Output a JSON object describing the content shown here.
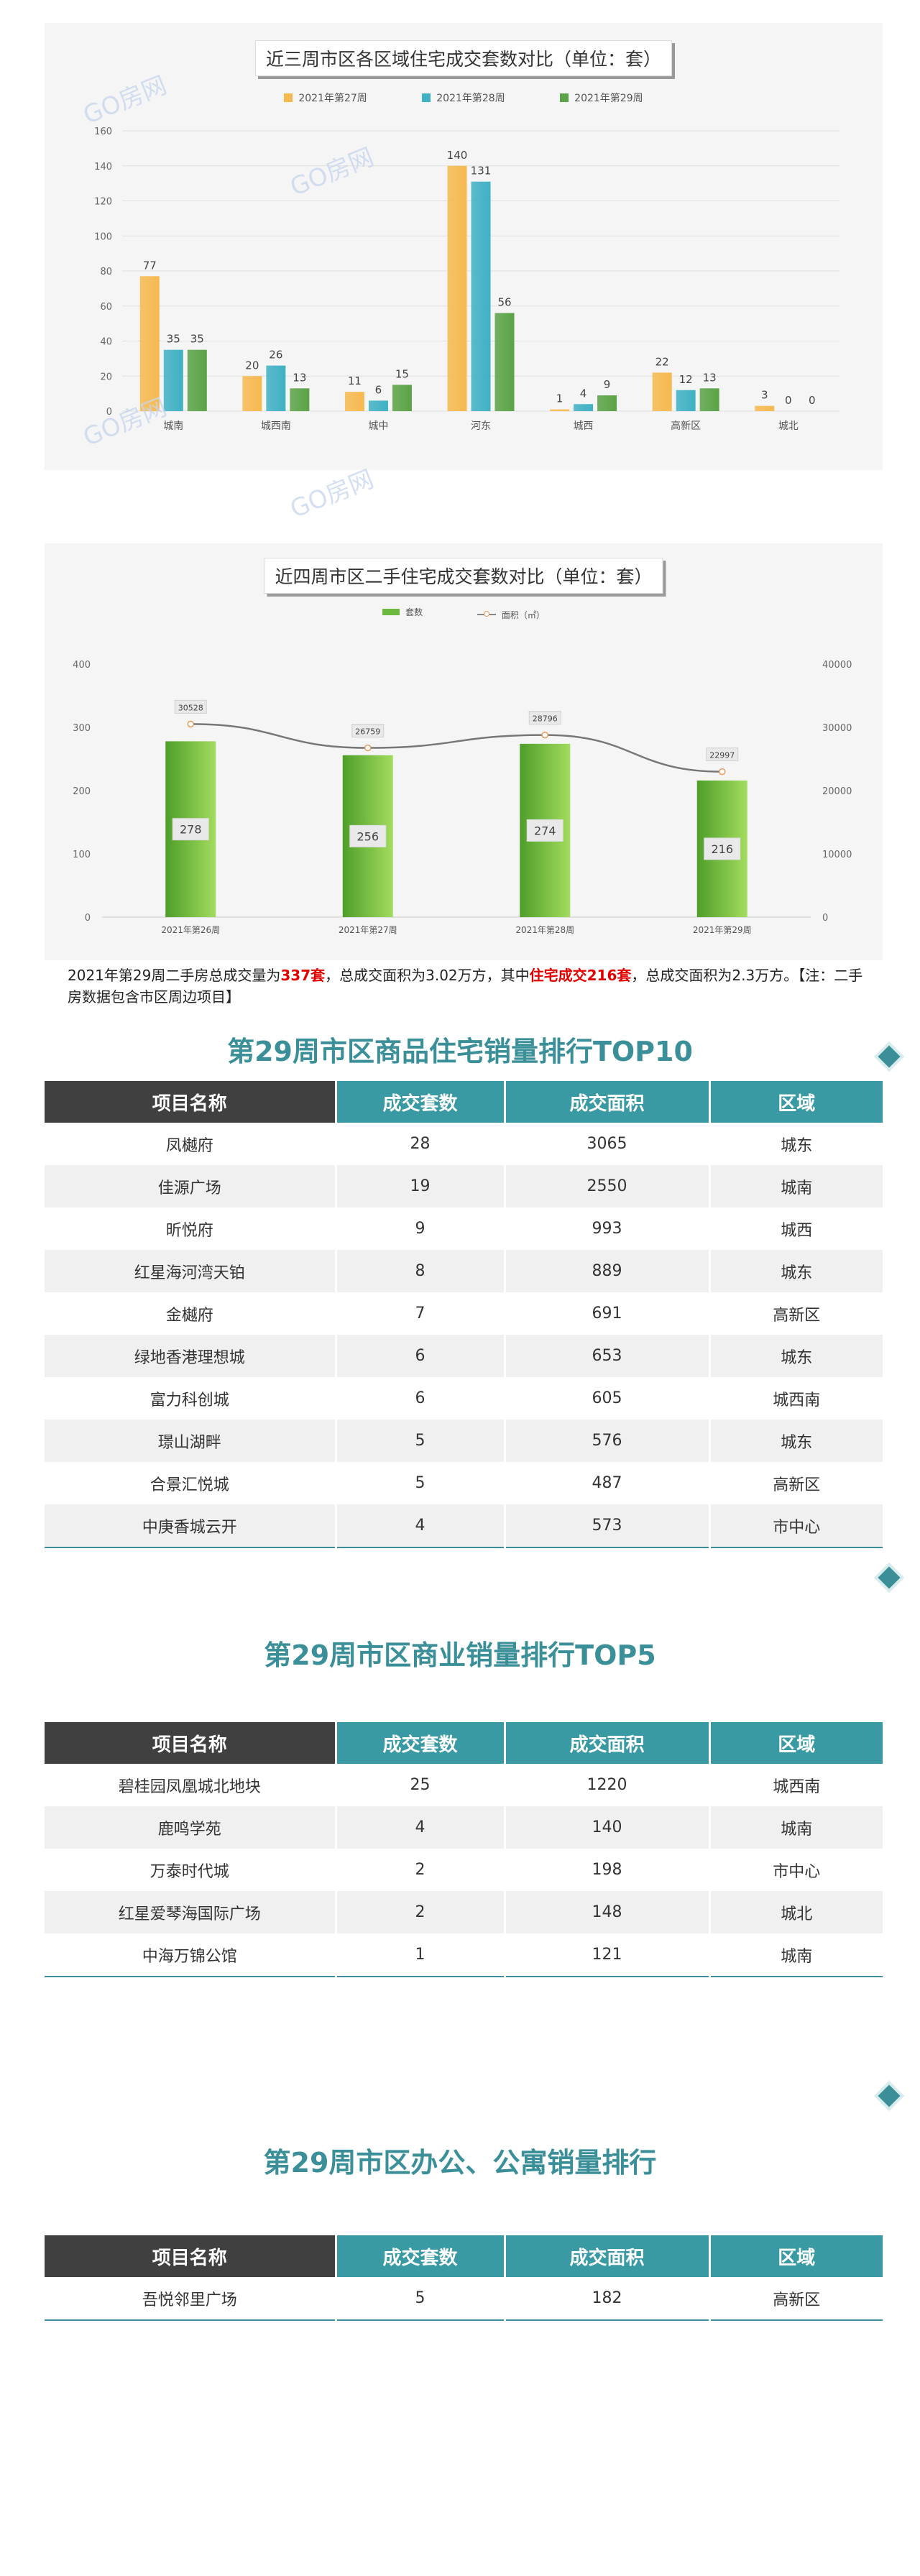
{
  "watermark": "GO房网",
  "chart_data": [
    {
      "type": "bar",
      "title": "近三周市区各区域住宅成交套数对比（单位：套）",
      "categories": [
        "城南",
        "城西南",
        "城中",
        "河东",
        "城西",
        "高新区",
        "城北"
      ],
      "series": [
        {
          "name": "2021年第27周",
          "values": [
            77,
            20,
            11,
            140,
            1,
            22,
            3
          ]
        },
        {
          "name": "2021年第28周",
          "values": [
            35,
            26,
            6,
            131,
            4,
            12,
            0
          ]
        },
        {
          "name": "2021年第29周",
          "values": [
            35,
            13,
            15,
            56,
            9,
            13,
            0
          ]
        }
      ],
      "ylim": [
        0,
        160
      ],
      "yticks": [
        "0",
        "20",
        "40",
        "60",
        "80",
        "100",
        "120",
        "140",
        "160"
      ],
      "grid": true,
      "legend_position": "top",
      "colors": [
        "#f6b94f",
        "#3fb1c4",
        "#5aa346"
      ]
    },
    {
      "type": "bar",
      "title": "近四周市区二手住宅成交套数对比（单位：套）",
      "categories": [
        "2021年第26周",
        "2021年第27周",
        "2021年第28周",
        "2021年第29周"
      ],
      "series": [
        {
          "name": "套数",
          "type": "bar",
          "axis": "left",
          "values": [
            278,
            256,
            274,
            216
          ]
        },
        {
          "name": "面积（㎡）",
          "type": "line",
          "axis": "right",
          "values": [
            30528,
            26759,
            28796,
            22997
          ]
        }
      ],
      "ylim": [
        0,
        400
      ],
      "y2lim": [
        0,
        40000
      ],
      "yticks": [
        "0",
        "100",
        "200",
        "300",
        "400"
      ],
      "y2ticks": [
        "0",
        "10000",
        "20000",
        "30000",
        "40000"
      ],
      "grid": false,
      "legend_position": "top",
      "colors": [
        "#78c143",
        "#777777"
      ]
    }
  ],
  "summary": {
    "p1": "2021年第29周二手房总成交量为",
    "v1": "337套",
    "p2": "，总成交面积为3.02万方，其中",
    "v2": "住宅成交216套",
    "p3": "，总成交面积为2.3万方。【注：二手房数据包含市区周边项目】"
  },
  "sections": [
    {
      "title": "第29周市区商品住宅销量排行TOP10",
      "headers": [
        "项目名称",
        "成交套数",
        "成交面积",
        "区域"
      ],
      "rows": [
        [
          "凤樾府",
          "28",
          "3065",
          "城东"
        ],
        [
          "佳源广场",
          "19",
          "2550",
          "城南"
        ],
        [
          "昕悦府",
          "9",
          "993",
          "城西"
        ],
        [
          "红星海河湾天铂",
          "8",
          "889",
          "城东"
        ],
        [
          "金樾府",
          "7",
          "691",
          "高新区"
        ],
        [
          "绿地香港理想城",
          "6",
          "653",
          "城东"
        ],
        [
          "富力科创城",
          "6",
          "605",
          "城西南"
        ],
        [
          "璟山湖畔",
          "5",
          "576",
          "城东"
        ],
        [
          "合景汇悦城",
          "5",
          "487",
          "高新区"
        ],
        [
          "中庚香城云开",
          "4",
          "573",
          "市中心"
        ]
      ]
    },
    {
      "title": "第29周市区商业销量排行TOP5",
      "headers": [
        "项目名称",
        "成交套数",
        "成交面积",
        "区域"
      ],
      "rows": [
        [
          "碧桂园凤凰城北地块",
          "25",
          "1220",
          "城西南"
        ],
        [
          "鹿鸣学苑",
          "4",
          "140",
          "城南"
        ],
        [
          "万泰时代城",
          "2",
          "198",
          "市中心"
        ],
        [
          "红星爱琴海国际广场",
          "2",
          "148",
          "城北"
        ],
        [
          "中海万锦公馆",
          "1",
          "121",
          "城南"
        ]
      ]
    },
    {
      "title": "第29周市区办公、公寓销量排行",
      "headers": [
        "项目名称",
        "成交套数",
        "成交面积",
        "区域"
      ],
      "rows": [
        [
          "吾悦邻里广场",
          "5",
          "182",
          "高新区"
        ]
      ]
    }
  ]
}
